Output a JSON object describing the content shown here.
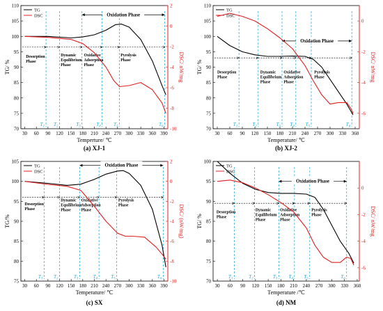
{
  "legend": {
    "tg": "TG",
    "dsc": "DSC"
  },
  "colors": {
    "tg": "#000000",
    "dsc": "#e02020",
    "t_line": "#1fa5d6"
  },
  "chart_data": [
    {
      "type": "line",
      "caption": "(a) XJ-1",
      "xlabel": "Temperture/ ℃",
      "ylabel": "TG/ %",
      "y2label": "DSC/ nW/mg",
      "xlim": [
        20,
        400
      ],
      "xticks": [
        30,
        60,
        90,
        120,
        150,
        180,
        210,
        240,
        270,
        300,
        330,
        360,
        390
      ],
      "ylim": [
        70,
        110
      ],
      "yticks": [
        70,
        75,
        80,
        85,
        90,
        95,
        100,
        105,
        110
      ],
      "y2lim": [
        -10,
        2
      ],
      "y2ticks": [
        -10,
        -8,
        -6,
        -4,
        -2,
        0,
        2
      ],
      "series": [
        {
          "name": "TG",
          "axis": "left",
          "x": [
            30,
            90,
            150,
            180,
            210,
            240,
            265,
            280,
            300,
            330,
            360,
            385,
            395
          ],
          "y": [
            100.0,
            100.0,
            99.5,
            99.8,
            100.5,
            102.0,
            103.8,
            104.0,
            103.0,
            99.0,
            92.0,
            84.0,
            81.0
          ]
        },
        {
          "name": "DSC",
          "axis": "right",
          "x": [
            30,
            90,
            150,
            180,
            210,
            240,
            260,
            275,
            300,
            330,
            360,
            385,
            395
          ],
          "y": [
            -1.0,
            -1.1,
            -1.3,
            -1.7,
            -2.6,
            -4.0,
            -5.3,
            -5.9,
            -5.8,
            -5.5,
            -6.2,
            -7.5,
            -8.5
          ]
        }
      ],
      "t_lines": [
        85,
        120,
        178,
        230,
        275,
        392
      ],
      "t_labels": [
        "T1",
        "T2",
        "T3",
        "T4",
        "T5",
        "T6"
      ],
      "phases": [
        {
          "label": [
            "Desorption",
            "Phase"
          ],
          "x": 33,
          "y": 93
        },
        {
          "label": [
            "Dynamic",
            "Equilibrium",
            "Phase"
          ],
          "x": 123,
          "y": 93.5
        },
        {
          "label": [
            "Oxidative",
            "Adsorption",
            "Phase"
          ],
          "x": 183,
          "y": 93.5
        },
        {
          "label": [
            "Pyrolysis",
            "Phase"
          ],
          "x": 278,
          "y": 93.5
        }
      ],
      "sep_y": 96.5,
      "oxidation": {
        "label": "Oxidation Phase",
        "x1": 178,
        "x2": 392,
        "y": 107
      }
    },
    {
      "type": "line",
      "caption": "(b) XJ-2",
      "xlabel": "Temperature/ ℃",
      "ylabel": "TG/ %",
      "y2label": "DSC/ nW/mg",
      "xlim": [
        20,
        370
      ],
      "xticks": [
        30,
        60,
        90,
        120,
        150,
        180,
        210,
        240,
        270,
        300,
        330,
        360
      ],
      "ylim": [
        70,
        110
      ],
      "yticks": [
        70,
        75,
        80,
        85,
        90,
        95,
        100,
        105,
        110
      ],
      "y2lim": [
        -7,
        1
      ],
      "y2ticks": [
        -6,
        -4,
        -2,
        0
      ],
      "series": [
        {
          "name": "TG",
          "axis": "left",
          "x": [
            30,
            60,
            90,
            120,
            150,
            180,
            210,
            240,
            260,
            280,
            300,
            320,
            340,
            355
          ],
          "y": [
            100.0,
            97.0,
            95.0,
            94.0,
            93.5,
            93.5,
            93.6,
            93.5,
            92.5,
            90.0,
            86.0,
            82.0,
            78.0,
            74.5
          ]
        },
        {
          "name": "DSC",
          "axis": "right",
          "x": [
            30,
            60,
            90,
            120,
            150,
            180,
            210,
            240,
            260,
            280,
            300,
            320,
            340,
            350,
            355
          ],
          "y": [
            0.3,
            0.5,
            0.3,
            0.0,
            -0.5,
            -1.1,
            -1.8,
            -2.9,
            -3.9,
            -4.8,
            -5.4,
            -5.3,
            -5.3,
            -5.7,
            -6.0
          ]
        }
      ],
      "t_lines": [
        82,
        128,
        185,
        218,
        255,
        352
      ],
      "t_labels": [
        "T1",
        "T2",
        "T3",
        "T4",
        "T5",
        "T6"
      ],
      "phases": [
        {
          "label": [
            "Desorption",
            "Phase"
          ],
          "x": 30,
          "y": 88
        },
        {
          "label": [
            "Dynamic",
            "Equilibrium",
            "Phase"
          ],
          "x": 133,
          "y": 88
        },
        {
          "label": [
            "Oxidative",
            "Adsorption",
            "Phase"
          ],
          "x": 189,
          "y": 88
        },
        {
          "label": [
            "Pyrolysis",
            "Phase"
          ],
          "x": 262,
          "y": 88
        }
      ],
      "sep_y": 93,
      "oxidation": {
        "label": "Oxidation Phase",
        "x1": 185,
        "x2": 352,
        "y": 98.5
      }
    },
    {
      "type": "line",
      "caption": "(c) SX",
      "xlabel": "Temperature/ ℃",
      "ylabel": "TG/%",
      "y2label": "DSC/ (nW/mg)",
      "xlim": [
        20,
        400
      ],
      "xticks": [
        30,
        60,
        90,
        120,
        150,
        180,
        210,
        240,
        270,
        300,
        330,
        360,
        390
      ],
      "ylim": [
        75,
        105
      ],
      "yticks": [
        75,
        80,
        85,
        90,
        95,
        100,
        105
      ],
      "y2lim": [
        -10,
        2
      ],
      "y2ticks": [
        -10,
        -8,
        -6,
        -4,
        -2,
        0,
        2
      ],
      "series": [
        {
          "name": "TG",
          "axis": "left",
          "x": [
            30,
            90,
            140,
            175,
            210,
            240,
            270,
            285,
            300,
            330,
            360,
            385,
            395
          ],
          "y": [
            100.0,
            99.5,
            99.0,
            99.3,
            100.5,
            101.8,
            102.6,
            102.7,
            102.0,
            99.0,
            93.0,
            84.0,
            78.5
          ]
        },
        {
          "name": "DSC",
          "axis": "right",
          "x": [
            30,
            90,
            140,
            175,
            210,
            240,
            270,
            290,
            310,
            340,
            370,
            385,
            395
          ],
          "y": [
            0.0,
            -0.3,
            -0.5,
            -0.9,
            -2.5,
            -4.0,
            -5.2,
            -5.5,
            -5.5,
            -5.6,
            -6.6,
            -7.3,
            -7.8
          ]
        }
      ],
      "t_lines": [
        80,
        120,
        172,
        222,
        268,
        388
      ],
      "t_labels": [
        "T1",
        "T2",
        "T3",
        "T4",
        "T5",
        "T6"
      ],
      "phases": [
        {
          "label": [
            "Desorption",
            "Phase"
          ],
          "x": 30,
          "y": 94
        },
        {
          "label": [
            "Dynamic",
            "Equilibrium",
            "Phase"
          ],
          "x": 123,
          "y": 95
        },
        {
          "label": [
            "Oxidative",
            "Adsorption",
            "Phase"
          ],
          "x": 176,
          "y": 95
        },
        {
          "label": [
            "Pyrolysis",
            "Phase"
          ],
          "x": 272,
          "y": 95
        }
      ],
      "sep_y": 96,
      "oxidation": {
        "label": "Oxidation Phase",
        "x1": 172,
        "x2": 388,
        "y": 104
      }
    },
    {
      "type": "line",
      "caption": "(d) NM",
      "xlabel": "Temperature /℃",
      "ylabel": "TG/ %",
      "y2label": "DSC/ nW/mg",
      "xlim": [
        20,
        365
      ],
      "xticks": [
        30,
        60,
        90,
        120,
        150,
        180,
        210,
        240,
        270,
        300,
        330,
        360
      ],
      "ylim": [
        70,
        100
      ],
      "yticks": [
        70,
        75,
        80,
        85,
        90,
        95,
        100
      ],
      "y2lim": [
        -7,
        2
      ],
      "y2ticks": [
        -6,
        -4,
        -2,
        0
      ],
      "series": [
        {
          "name": "TG",
          "axis": "left",
          "x": [
            30,
            60,
            90,
            120,
            150,
            180,
            210,
            240,
            260,
            280,
            300,
            320,
            340,
            352
          ],
          "y": [
            100.0,
            97.0,
            94.5,
            93.0,
            92.2,
            92.0,
            92.0,
            91.8,
            91.0,
            88.0,
            84.0,
            80.0,
            77.0,
            74.5
          ]
        },
        {
          "name": "DSC",
          "axis": "right",
          "x": [
            30,
            60,
            90,
            120,
            150,
            180,
            210,
            240,
            260,
            280,
            300,
            320,
            335,
            345,
            352
          ],
          "y": [
            0.5,
            0.6,
            0.4,
            0.0,
            -0.5,
            -1.1,
            -1.8,
            -3.0,
            -4.3,
            -5.2,
            -5.6,
            -5.6,
            -5.2,
            -5.3,
            -5.8
          ]
        }
      ],
      "t_lines": [
        70,
        118,
        175,
        212,
        248,
        335
      ],
      "t_labels": [
        "T1",
        "T2",
        "T3",
        "T4",
        "T5",
        "T6"
      ],
      "phases": [
        {
          "label": [
            "Desorption",
            "Phase"
          ],
          "x": 28,
          "y": 87
        },
        {
          "label": [
            "Dynamic",
            "Equilibrium",
            "Phase"
          ],
          "x": 120,
          "y": 87.5
        },
        {
          "label": [
            "Oxidative",
            "Adsorption",
            "Phase"
          ],
          "x": 178,
          "y": 87.5
        },
        {
          "label": [
            "Pyrolysis",
            "Phase"
          ],
          "x": 252,
          "y": 87.5
        }
      ],
      "sep_y": 89.5,
      "oxidation": {
        "label": "Oxidation Phase",
        "x1": 175,
        "x2": 335,
        "y": 95
      }
    }
  ]
}
